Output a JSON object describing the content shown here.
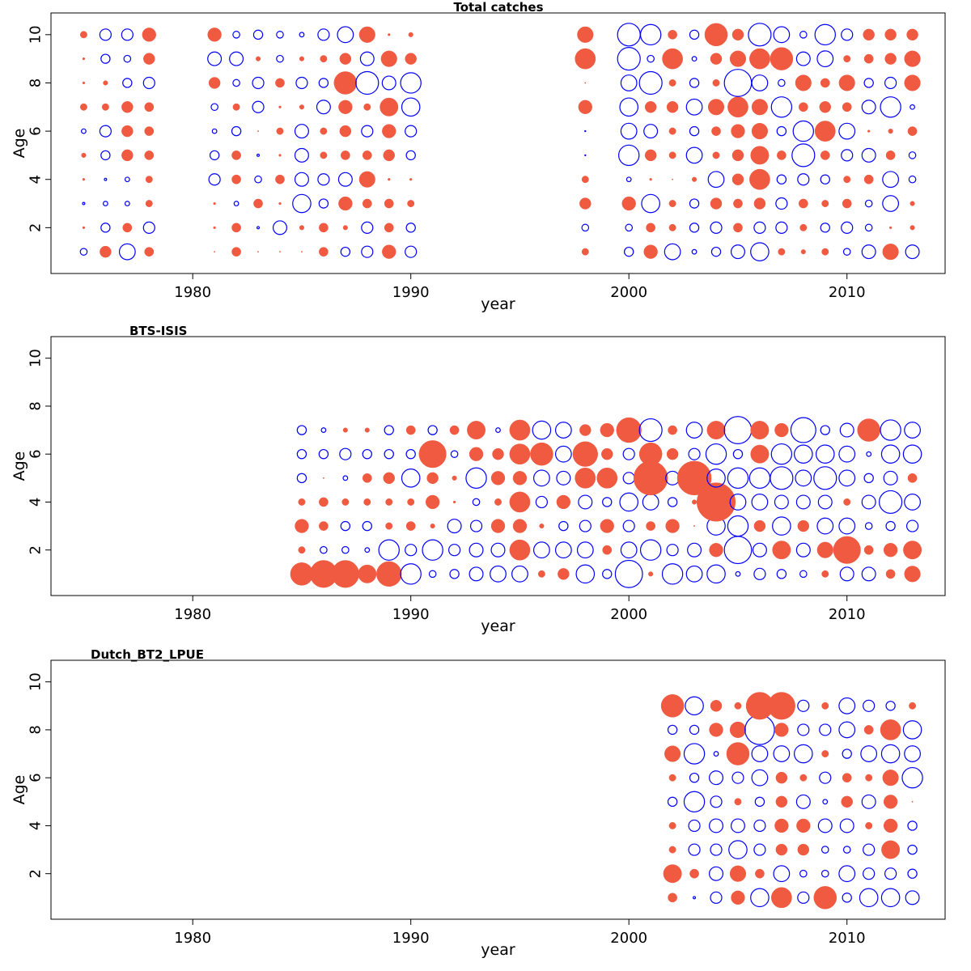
{
  "chart_data": [
    {
      "type": "scatter",
      "title": "Total catches",
      "xlabel": "year",
      "ylabel": "Age",
      "xlim": [
        1973.5,
        2014.5
      ],
      "ylim": [
        0.1,
        10.9
      ],
      "xticks": [
        1980,
        1990,
        2000,
        2010
      ],
      "yticks": [
        2,
        4,
        6,
        8,
        10
      ],
      "encoding": "bubble radius = |residual|; filled red = positive, open blue = negative",
      "colors": {
        "positive": "#f05a40",
        "negative": "#0000ff"
      },
      "series": [
        {
          "year": 1975,
          "residuals": [
            -3,
            1,
            -1,
            1,
            2,
            -2,
            3,
            1,
            1,
            3
          ]
        },
        {
          "year": 1976,
          "residuals": [
            5,
            -4,
            -2,
            -1,
            -4,
            -5,
            3,
            2,
            -4,
            -5
          ]
        },
        {
          "year": 1977,
          "residuals": [
            -7,
            4,
            -2,
            -2,
            5,
            5,
            5,
            -4,
            -3,
            -5
          ]
        },
        {
          "year": 1978,
          "residuals": [
            4,
            -5,
            3,
            3,
            4,
            4,
            4,
            -5,
            5,
            6
          ]
        },
        {
          "year": 1981,
          "residuals": [
            0.5,
            1,
            1,
            -5,
            -4,
            -2,
            -3,
            5,
            -6,
            6
          ]
        },
        {
          "year": 1982,
          "residuals": [
            4,
            4,
            -2,
            4,
            4,
            -4,
            3,
            -3,
            -6,
            -3
          ]
        },
        {
          "year": 1983,
          "residuals": [
            0.5,
            -1,
            4,
            -3,
            -1,
            0.5,
            -5,
            -5,
            2,
            -4
          ]
        },
        {
          "year": 1984,
          "residuals": [
            0.5,
            -6,
            1,
            4,
            1,
            3,
            1,
            4,
            -3,
            -3
          ]
        },
        {
          "year": 1985,
          "residuals": [
            0.5,
            2,
            -8,
            -6,
            -6,
            -6,
            2,
            -5,
            2,
            -2
          ]
        },
        {
          "year": 1986,
          "residuals": [
            4,
            4,
            -4,
            -5,
            3,
            3,
            -6,
            -4,
            3,
            -5
          ]
        },
        {
          "year": 1987,
          "residuals": [
            -4,
            2,
            6,
            -6,
            4,
            5,
            6,
            10,
            5,
            -7
          ]
        },
        {
          "year": 1988,
          "residuals": [
            -5,
            -5,
            4,
            7,
            4,
            -5,
            3,
            -10,
            -6,
            7
          ]
        },
        {
          "year": 1989,
          "residuals": [
            6,
            4,
            4,
            1,
            5,
            6,
            8,
            -6,
            7,
            1
          ]
        },
        {
          "year": 1990,
          "residuals": [
            -5,
            -4,
            3,
            1,
            -4,
            -5,
            -8,
            -9,
            5,
            2
          ]
        },
        {
          "year": 1998,
          "residuals": [
            3,
            -3,
            5,
            3,
            0,
            0,
            6,
            0.5,
            9,
            7
          ]
        },
        {
          "year": 2000,
          "residuals": [
            -4,
            -3,
            6,
            -2,
            -9,
            -7,
            -8,
            -7,
            -10,
            -10
          ]
        },
        {
          "year": 2001,
          "residuals": [
            6,
            4,
            -8,
            1,
            5,
            -6,
            5,
            -10,
            -3,
            -9
          ]
        },
        {
          "year": 2002,
          "residuals": [
            -7,
            3,
            3,
            0.5,
            3,
            3,
            5,
            3,
            9,
            4
          ]
        },
        {
          "year": 2003,
          "residuals": [
            -2,
            -4,
            -4,
            2,
            -7,
            -4,
            -7,
            -4,
            -2,
            -4
          ]
        },
        {
          "year": 2004,
          "residuals": [
            -4,
            -5,
            5,
            -7,
            3,
            4,
            7,
            3,
            5,
            10
          ]
        },
        {
          "year": 2005,
          "residuals": [
            -6,
            4,
            4,
            5,
            5,
            6,
            9,
            -12,
            7,
            5
          ]
        },
        {
          "year": 2006,
          "residuals": [
            -8,
            -5,
            5,
            9,
            8,
            7,
            7,
            -7,
            9,
            -10
          ]
        },
        {
          "year": 2007,
          "residuals": [
            3,
            -5,
            -5,
            -4,
            4,
            -4,
            -9,
            -3,
            10,
            -7
          ]
        },
        {
          "year": 2008,
          "residuals": [
            2,
            3,
            4,
            -5,
            -10,
            -9,
            4,
            7,
            -6,
            -3
          ]
        },
        {
          "year": 2009,
          "residuals": [
            3,
            -4,
            3,
            -4,
            4,
            9,
            5,
            4,
            -7,
            -9
          ]
        },
        {
          "year": 2010,
          "residuals": [
            -3,
            -5,
            4,
            3,
            -5,
            -7,
            4,
            7,
            3,
            -5
          ]
        },
        {
          "year": 2011,
          "residuals": [
            -6,
            -3,
            -3,
            4,
            -6,
            1,
            -6,
            -4,
            4,
            5
          ]
        },
        {
          "year": 2012,
          "residuals": [
            7,
            1,
            -7,
            -7,
            4,
            2,
            -9,
            -5,
            5,
            5
          ]
        },
        {
          "year": 2013,
          "residuals": [
            -6,
            2,
            2,
            -3,
            -3,
            4,
            -2,
            7,
            7,
            5
          ]
        }
      ]
    },
    {
      "type": "scatter",
      "title": "BTS-ISIS",
      "xlabel": "year",
      "ylabel": "Age",
      "xlim": [
        1973.5,
        2014.5
      ],
      "ylim": [
        0.1,
        10.9
      ],
      "xticks": [
        1980,
        1990,
        2000,
        2010
      ],
      "yticks": [
        2,
        4,
        6,
        8,
        10
      ],
      "encoding": "bubble radius = |residual|; filled red = positive, open blue = negative",
      "colors": {
        "positive": "#f05a40",
        "negative": "#0000ff"
      },
      "series": [
        {
          "year": 1985,
          "residuals": [
            10,
            3,
            6,
            3,
            -4,
            -4,
            -4
          ]
        },
        {
          "year": 1986,
          "residuals": [
            12,
            -3,
            4,
            4,
            0.5,
            -4,
            -2
          ]
        },
        {
          "year": 1987,
          "residuals": [
            12,
            -3,
            -4,
            3,
            -2,
            -5,
            2
          ]
        },
        {
          "year": 1988,
          "residuals": [
            8,
            -2,
            -4,
            3,
            4,
            -4,
            2
          ]
        },
        {
          "year": 1989,
          "residuals": [
            11,
            -9,
            3,
            3,
            5,
            -4,
            -4
          ]
        },
        {
          "year": 1990,
          "residuals": [
            -9,
            -5,
            4,
            3,
            -8,
            -4,
            4
          ]
        },
        {
          "year": 1991,
          "residuals": [
            -3,
            -9,
            2,
            6,
            5,
            12,
            -4
          ]
        },
        {
          "year": 1992,
          "residuals": [
            -4,
            -5,
            -6,
            1,
            2,
            -3,
            4
          ]
        },
        {
          "year": 1993,
          "residuals": [
            -6,
            -6,
            -5,
            -3,
            -9,
            6,
            8
          ]
        },
        {
          "year": 1994,
          "residuals": [
            -7,
            -6,
            6,
            3,
            6,
            5,
            -2
          ]
        },
        {
          "year": 1995,
          "residuals": [
            -7,
            9,
            6,
            9,
            6,
            9,
            9
          ]
        },
        {
          "year": 1996,
          "residuals": [
            3,
            -7,
            2,
            -5,
            -7,
            10,
            -8
          ]
        },
        {
          "year": 1997,
          "residuals": [
            5,
            -7,
            -4,
            6,
            -6,
            -7,
            -7
          ]
        },
        {
          "year": 1998,
          "residuals": [
            -8,
            -7,
            -5,
            -6,
            9,
            11,
            5
          ]
        },
        {
          "year": 1999,
          "residuals": [
            -4,
            4,
            6,
            -4,
            9,
            5,
            6
          ]
        },
        {
          "year": 2000,
          "residuals": [
            -12,
            -7,
            -5,
            -8,
            -5,
            -5,
            11
          ]
        },
        {
          "year": 2001,
          "residuals": [
            2,
            -9,
            4,
            -7,
            15,
            10,
            -10
          ]
        },
        {
          "year": 2002,
          "residuals": [
            -9,
            -5,
            6,
            -4,
            -6,
            5,
            4
          ]
        },
        {
          "year": 2003,
          "residuals": [
            -7,
            -6,
            0.5,
            2,
            15,
            -5,
            -7
          ]
        },
        {
          "year": 2004,
          "residuals": [
            -8,
            6,
            -8,
            17,
            -8,
            -9,
            8
          ]
        },
        {
          "year": 2005,
          "residuals": [
            -2,
            -12,
            -9,
            -7,
            -9,
            -4,
            -12
          ]
        },
        {
          "year": 2006,
          "residuals": [
            -5,
            -6,
            5,
            -7,
            -9,
            8,
            8
          ]
        },
        {
          "year": 2007,
          "residuals": [
            -4,
            8,
            -8,
            -6,
            -10,
            -9,
            6
          ]
        },
        {
          "year": 2008,
          "residuals": [
            -3,
            -6,
            5,
            -6,
            -7,
            -8,
            -11
          ]
        },
        {
          "year": 2009,
          "residuals": [
            3,
            7,
            -7,
            -6,
            -10,
            -8,
            -4
          ]
        },
        {
          "year": 2010,
          "residuals": [
            -6,
            12,
            -7,
            3,
            -7,
            -7,
            -6
          ]
        },
        {
          "year": 2011,
          "residuals": [
            -6,
            4,
            -3,
            -6,
            -4,
            -2,
            10
          ]
        },
        {
          "year": 2012,
          "residuals": [
            4,
            6,
            -4,
            -10,
            -6,
            -8,
            -9
          ]
        },
        {
          "year": 2013,
          "residuals": [
            7,
            8,
            -5,
            -7,
            4,
            -8,
            -7
          ]
        }
      ]
    },
    {
      "type": "scatter",
      "title": "Dutch_BT2_LPUE",
      "xlabel": "year",
      "ylabel": "Age",
      "xlim": [
        1973.5,
        2014.5
      ],
      "ylim": [
        0.1,
        10.9
      ],
      "xticks": [
        1980,
        1990,
        2000,
        2010
      ],
      "yticks": [
        2,
        4,
        6,
        8,
        10
      ],
      "encoding": "bubble radius = |residual|; filled red = positive, open blue = negative",
      "colors": {
        "positive": "#f05a40",
        "negative": "#0000ff"
      },
      "series": [
        {
          "year": 2002,
          "residuals": [
            4,
            8,
            3,
            3,
            -4,
            3,
            7,
            -4,
            10
          ]
        },
        {
          "year": 2003,
          "residuals": [
            -1,
            4,
            -5,
            -5,
            -9,
            -4,
            -9,
            -4,
            -8
          ]
        },
        {
          "year": 2004,
          "residuals": [
            -5,
            -6,
            -5,
            -6,
            -5,
            -6,
            -2,
            6,
            5
          ]
        },
        {
          "year": 2005,
          "residuals": [
            6,
            7,
            -8,
            -6,
            3,
            -5,
            10,
            7,
            3
          ]
        },
        {
          "year": 2006,
          "residuals": [
            -8,
            4,
            -5,
            -5,
            -4,
            -7,
            -7,
            -13,
            12
          ]
        },
        {
          "year": 2007,
          "residuals": [
            9,
            -7,
            5,
            6,
            5,
            5,
            -7,
            6,
            12
          ]
        },
        {
          "year": 2008,
          "residuals": [
            -5,
            -3,
            5,
            6,
            -6,
            3,
            -8,
            -5,
            -5
          ]
        },
        {
          "year": 2009,
          "residuals": [
            10,
            -3,
            -3,
            -6,
            -2,
            -5,
            3,
            -5,
            3
          ]
        },
        {
          "year": 2010,
          "residuals": [
            -4,
            -7,
            -3,
            -6,
            5,
            4,
            -4,
            -7,
            -7
          ]
        },
        {
          "year": 2011,
          "residuals": [
            -8,
            -5,
            -5,
            3,
            -6,
            3,
            -7,
            4,
            -5
          ]
        },
        {
          "year": 2012,
          "residuals": [
            -8,
            -5,
            8,
            6,
            6,
            7,
            -8,
            9,
            -4
          ]
        },
        {
          "year": 2013,
          "residuals": [
            -6,
            -4,
            -4,
            -4,
            0.5,
            -9,
            -7,
            -8,
            3
          ]
        }
      ]
    }
  ]
}
